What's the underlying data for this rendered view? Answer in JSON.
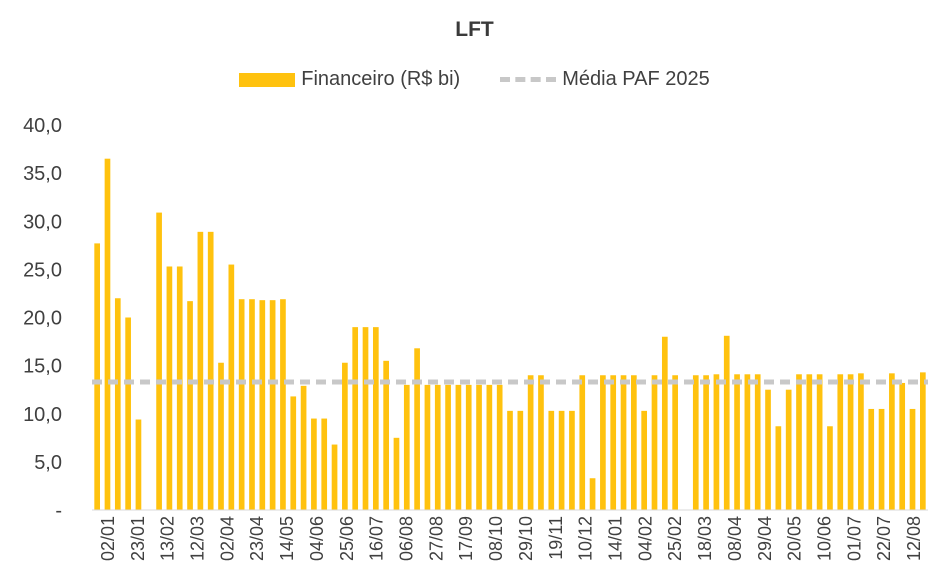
{
  "chart_data": {
    "type": "bar",
    "title": "LFT",
    "legend": {
      "placement": "top",
      "entries": [
        "Financeiro (R$ bi)",
        "Média PAF 2025"
      ]
    },
    "ylim": [
      0,
      40
    ],
    "yticks": [
      "-",
      "5,0",
      "10,0",
      "15,0",
      "20,0",
      "25,0",
      "30,0",
      "35,0",
      "40,0"
    ],
    "xtick_labels": [
      "02/01",
      "23/01",
      "13/02",
      "12/03",
      "02/04",
      "23/04",
      "14/05",
      "04/06",
      "25/06",
      "16/07",
      "06/08",
      "27/08",
      "17/09",
      "08/10",
      "29/10",
      "19/11",
      "10/12",
      "14/01",
      "04/02",
      "25/02",
      "18/03",
      "08/04",
      "29/04",
      "20/05",
      "10/06",
      "01/07",
      "22/07",
      "12/08"
    ],
    "grid": false,
    "series": [
      {
        "name": "Financeiro (R$ bi)",
        "color": "#FFC20E",
        "values": [
          27.7,
          36.5,
          22,
          20,
          9.4,
          0,
          30.9,
          25.3,
          25.3,
          21.7,
          28.9,
          28.9,
          15.3,
          25.5,
          21.9,
          21.9,
          21.8,
          21.8,
          21.9,
          11.8,
          12.9,
          9.5,
          9.5,
          6.8,
          15.3,
          19,
          19,
          19,
          15.5,
          7.5,
          13,
          16.8,
          13,
          13,
          13,
          13,
          13,
          13,
          13,
          13,
          10.3,
          10.3,
          14,
          14,
          10.3,
          10.3,
          10.3,
          14,
          3.3,
          14,
          14,
          14,
          14,
          10.3,
          14,
          18,
          14,
          0,
          14,
          14,
          14.1,
          18.1,
          14.1,
          14.1,
          14.1,
          12.5,
          8.7,
          12.5,
          14.1,
          14.1,
          14.1,
          8.7,
          14.1,
          14.1,
          14.2,
          10.5,
          10.5,
          14.2,
          13.2,
          10.5,
          14.3
        ]
      },
      {
        "name": "Média PAF 2025",
        "color": "#C8C8C8",
        "type": "line",
        "style": "dashed",
        "value": 13.3
      }
    ]
  }
}
